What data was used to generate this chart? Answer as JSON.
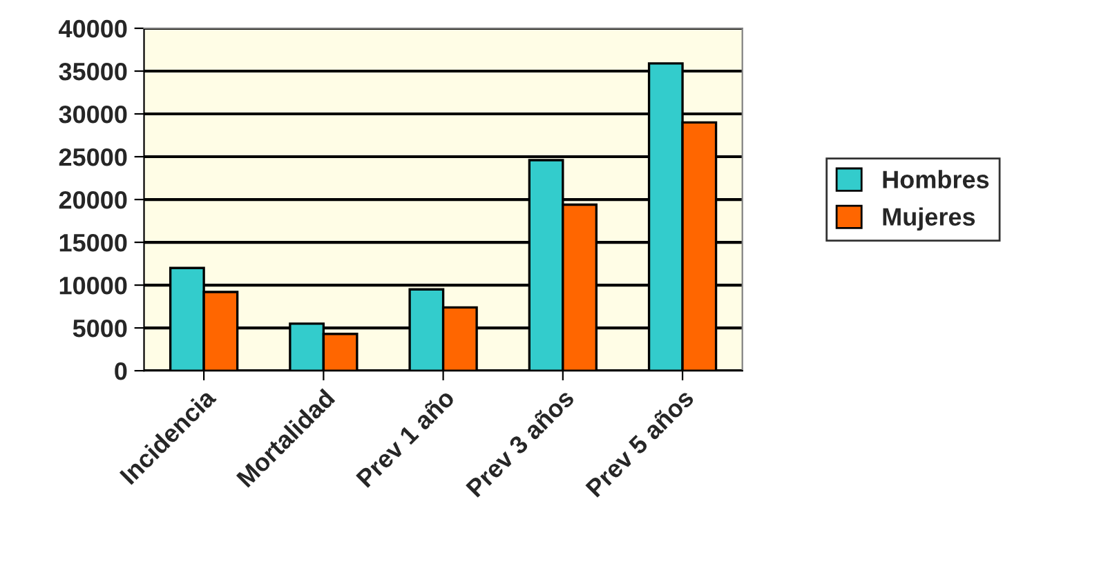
{
  "chart_data": {
    "type": "bar",
    "categories": [
      "Incidencia",
      "Mortalidad",
      "Prev 1 año",
      "Prev 3 años",
      "Prev 5 años"
    ],
    "series": [
      {
        "name": "Hombres",
        "color": "#33cccc",
        "values": [
          12000,
          5500,
          9500,
          24600,
          35900
        ]
      },
      {
        "name": "Mujeres",
        "color": "#ff6600",
        "values": [
          9200,
          4300,
          7400,
          19400,
          29000
        ]
      }
    ],
    "ylim": [
      0,
      40000
    ],
    "yticks": [
      0,
      5000,
      10000,
      15000,
      20000,
      25000,
      30000,
      35000,
      40000
    ],
    "grid": "y",
    "legend": "right"
  }
}
